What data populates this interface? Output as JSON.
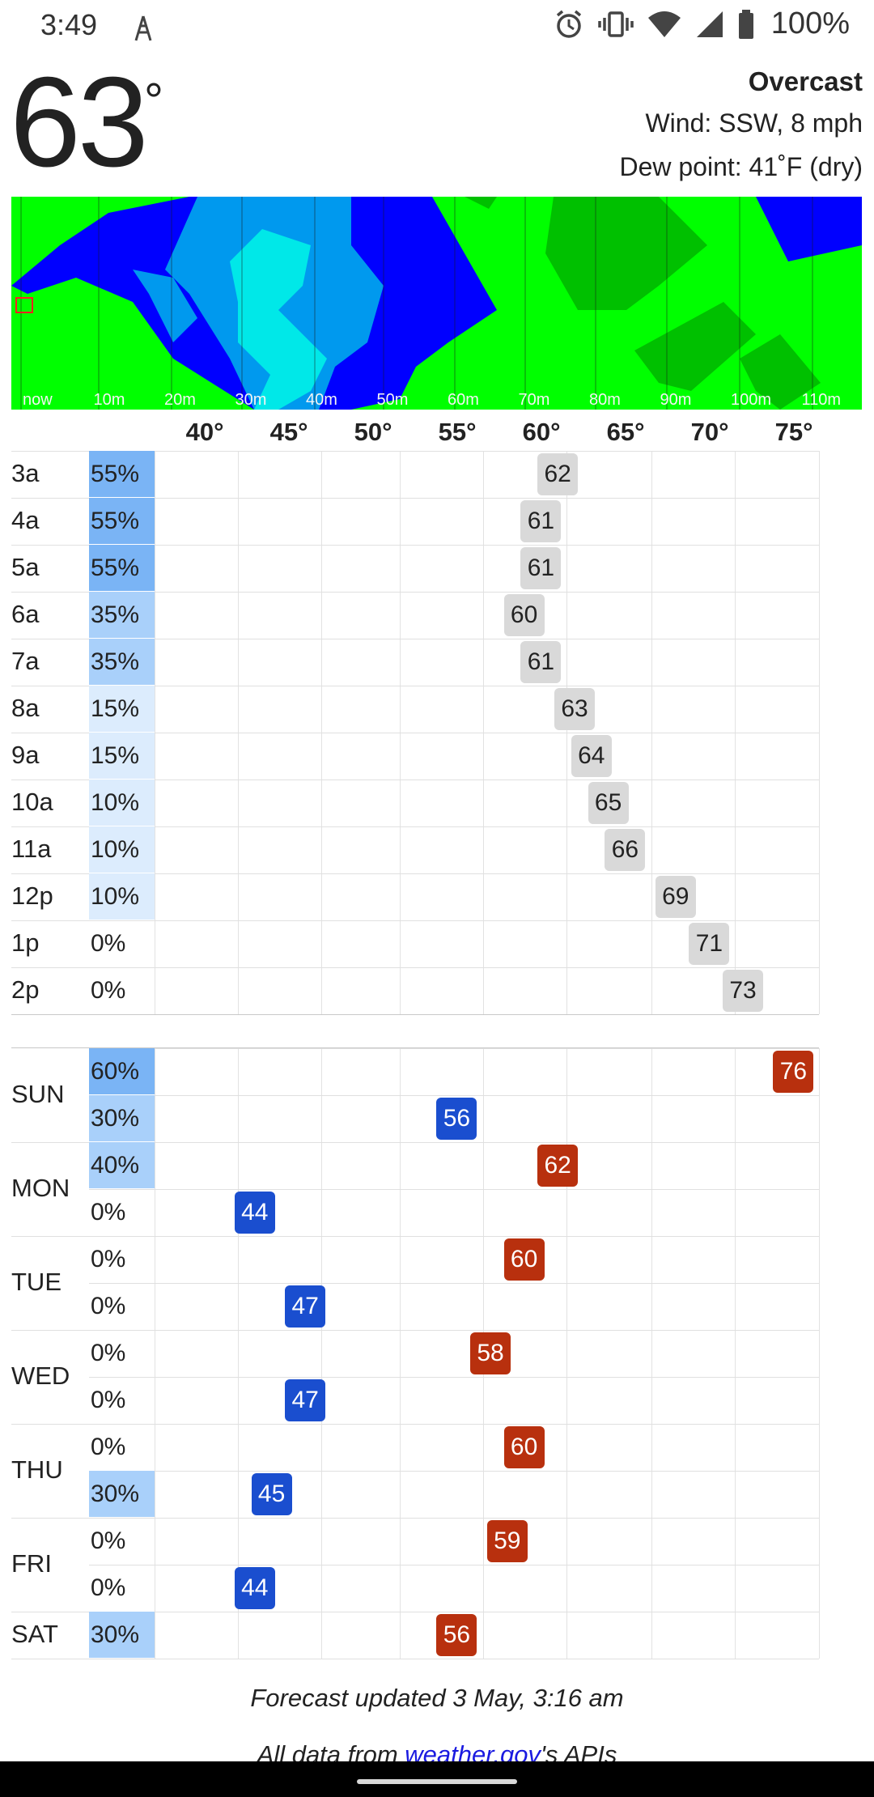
{
  "status_bar": {
    "time": "3:49",
    "battery": "100%",
    "icons": [
      "antenna-icon",
      "alarm-icon",
      "vibrate-icon",
      "wifi-icon",
      "signal-icon",
      "battery-icon"
    ]
  },
  "current": {
    "temp": "63",
    "degree_symbol": "°",
    "condition": "Overcast",
    "wind": "Wind: SSW, 8 mph",
    "dew_point": "Dew point: 41˚F (dry)"
  },
  "radar": {
    "time_labels": [
      "now",
      "10m",
      "20m",
      "30m",
      "40m",
      "50m",
      "60m",
      "70m",
      "80m",
      "90m",
      "100m",
      "110m"
    ],
    "colors": {
      "light_rain": "#00ff00",
      "moderate": "#00c000",
      "heavy": "#0000ff",
      "medium_blue": "#0099ee",
      "cyan": "#00e8e8"
    }
  },
  "temp_axis": [
    "40°",
    "45°",
    "50°",
    "55°",
    "60°",
    "65°",
    "70°",
    "75°"
  ],
  "hourly": [
    {
      "time": "3a",
      "pop": "55%",
      "pop_frac": 0.55,
      "temp": "62",
      "temp_value": 62
    },
    {
      "time": "4a",
      "pop": "55%",
      "pop_frac": 0.55,
      "temp": "61",
      "temp_value": 61
    },
    {
      "time": "5a",
      "pop": "55%",
      "pop_frac": 0.55,
      "temp": "61",
      "temp_value": 61
    },
    {
      "time": "6a",
      "pop": "35%",
      "pop_frac": 0.35,
      "temp": "60",
      "temp_value": 60
    },
    {
      "time": "7a",
      "pop": "35%",
      "pop_frac": 0.35,
      "temp": "61",
      "temp_value": 61
    },
    {
      "time": "8a",
      "pop": "15%",
      "pop_frac": 0.15,
      "temp": "63",
      "temp_value": 63
    },
    {
      "time": "9a",
      "pop": "15%",
      "pop_frac": 0.15,
      "temp": "64",
      "temp_value": 64
    },
    {
      "time": "10a",
      "pop": "10%",
      "pop_frac": 0.1,
      "temp": "65",
      "temp_value": 65
    },
    {
      "time": "11a",
      "pop": "10%",
      "pop_frac": 0.1,
      "temp": "66",
      "temp_value": 66
    },
    {
      "time": "12p",
      "pop": "10%",
      "pop_frac": 0.1,
      "temp": "69",
      "temp_value": 69
    },
    {
      "time": "1p",
      "pop": "0%",
      "pop_frac": 0,
      "temp": "71",
      "temp_value": 71
    },
    {
      "time": "2p",
      "pop": "0%",
      "pop_frac": 0,
      "temp": "73",
      "temp_value": 73
    }
  ],
  "daily": [
    {
      "day": "SUN",
      "rows": [
        {
          "pop": "60%",
          "pop_frac": 0.6,
          "temp": "76",
          "temp_value": 76,
          "kind": "high"
        },
        {
          "pop": "30%",
          "pop_frac": 0.3,
          "temp": "56",
          "temp_value": 56,
          "kind": "low"
        }
      ]
    },
    {
      "day": "MON",
      "rows": [
        {
          "pop": "40%",
          "pop_frac": 0.4,
          "temp": "62",
          "temp_value": 62,
          "kind": "high"
        },
        {
          "pop": "0%",
          "pop_frac": 0,
          "temp": "44",
          "temp_value": 44,
          "kind": "low"
        }
      ]
    },
    {
      "day": "TUE",
      "rows": [
        {
          "pop": "0%",
          "pop_frac": 0,
          "temp": "60",
          "temp_value": 60,
          "kind": "high"
        },
        {
          "pop": "0%",
          "pop_frac": 0,
          "temp": "47",
          "temp_value": 47,
          "kind": "low"
        }
      ]
    },
    {
      "day": "WED",
      "rows": [
        {
          "pop": "0%",
          "pop_frac": 0,
          "temp": "58",
          "temp_value": 58,
          "kind": "high"
        },
        {
          "pop": "0%",
          "pop_frac": 0,
          "temp": "47",
          "temp_value": 47,
          "kind": "low"
        }
      ]
    },
    {
      "day": "THU",
      "rows": [
        {
          "pop": "0%",
          "pop_frac": 0,
          "temp": "60",
          "temp_value": 60,
          "kind": "high"
        },
        {
          "pop": "30%",
          "pop_frac": 0.3,
          "temp": "45",
          "temp_value": 45,
          "kind": "low"
        }
      ]
    },
    {
      "day": "FRI",
      "rows": [
        {
          "pop": "0%",
          "pop_frac": 0,
          "temp": "59",
          "temp_value": 59,
          "kind": "high"
        },
        {
          "pop": "0%",
          "pop_frac": 0,
          "temp": "44",
          "temp_value": 44,
          "kind": "low"
        }
      ]
    },
    {
      "day": "SAT",
      "rows": [
        {
          "pop": "30%",
          "pop_frac": 0.3,
          "temp": "56",
          "temp_value": 56,
          "kind": "high"
        }
      ]
    }
  ],
  "colors": {
    "pop_heavy": "#7ab4f5",
    "pop_medium": "#a9d0fa",
    "pop_light": "#dcecfd",
    "hourly_badge": "#d9d9d9",
    "low_badge": "#1a4ecf",
    "high_badge": "#b8300e"
  },
  "footer": {
    "updated": "Forecast updated 3 May, 3:16 am",
    "source_prefix": "All data from ",
    "source_link": "weather.gov",
    "source_suffix": "'s APIs"
  }
}
